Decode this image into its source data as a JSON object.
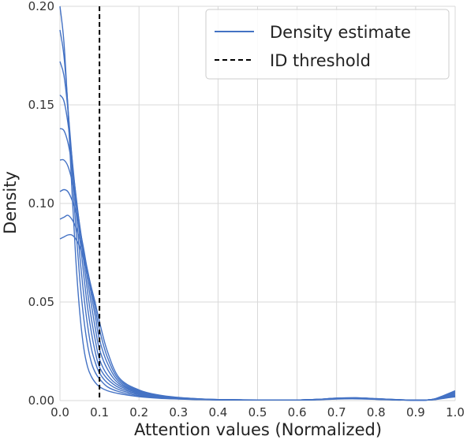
{
  "chart_data": {
    "type": "line",
    "title": "",
    "xlabel": "Attention values (Normalized)",
    "ylabel": "Density",
    "xlim": [
      0.0,
      1.0
    ],
    "ylim": [
      0.0,
      0.2
    ],
    "x_ticks": [
      "0.0",
      "0.1",
      "0.2",
      "0.3",
      "0.4",
      "0.5",
      "0.6",
      "0.7",
      "0.8",
      "0.9",
      "1.0"
    ],
    "y_ticks": [
      "0.00",
      "0.05",
      "0.10",
      "0.15",
      "0.20"
    ],
    "grid": true,
    "legend_position": "top-right",
    "legend": [
      {
        "label": "Density estimate",
        "style": "solid",
        "color": "#4472c4"
      },
      {
        "label": "ID threshold",
        "style": "dashed",
        "color": "#000000"
      }
    ],
    "threshold_x": 0.1,
    "series_color": "#4472c4",
    "x": [
      0.0,
      0.01,
      0.02,
      0.03,
      0.04,
      0.05,
      0.06,
      0.07,
      0.08,
      0.09,
      0.1,
      0.12,
      0.15,
      0.2,
      0.25,
      0.3,
      0.35,
      0.4,
      0.5,
      0.6,
      0.65,
      0.7,
      0.75,
      0.8,
      0.85,
      0.9,
      0.93,
      0.95,
      0.97,
      1.0
    ],
    "series": [
      {
        "values": [
          0.2,
          0.182,
          0.148,
          0.108,
          0.072,
          0.045,
          0.027,
          0.017,
          0.012,
          0.009,
          0.007,
          0.005,
          0.0035,
          0.002,
          0.0012,
          0.0008,
          0.0005,
          0.0004,
          0.0003,
          0.0003,
          0.0004,
          0.0008,
          0.0009,
          0.0006,
          0.0003,
          0.0002,
          0.0003,
          0.001,
          0.0025,
          0.005
        ]
      },
      {
        "values": [
          0.188,
          0.175,
          0.15,
          0.118,
          0.088,
          0.062,
          0.042,
          0.028,
          0.019,
          0.014,
          0.011,
          0.007,
          0.0045,
          0.0025,
          0.0014,
          0.0009,
          0.0006,
          0.0004,
          0.0003,
          0.0003,
          0.0005,
          0.0009,
          0.001,
          0.0007,
          0.0004,
          0.0002,
          0.0003,
          0.0009,
          0.0022,
          0.0045
        ]
      },
      {
        "values": [
          0.172,
          0.165,
          0.148,
          0.124,
          0.098,
          0.074,
          0.054,
          0.038,
          0.026,
          0.019,
          0.014,
          0.009,
          0.0055,
          0.003,
          0.0016,
          0.001,
          0.0006,
          0.0004,
          0.0003,
          0.0003,
          0.0005,
          0.001,
          0.0011,
          0.0007,
          0.0004,
          0.0002,
          0.0003,
          0.0008,
          0.002,
          0.004
        ]
      },
      {
        "values": [
          0.155,
          0.152,
          0.141,
          0.124,
          0.104,
          0.083,
          0.064,
          0.047,
          0.034,
          0.024,
          0.017,
          0.011,
          0.0065,
          0.0034,
          0.0018,
          0.0011,
          0.0007,
          0.0004,
          0.0003,
          0.0003,
          0.0005,
          0.001,
          0.0012,
          0.0008,
          0.0004,
          0.0002,
          0.0003,
          0.0008,
          0.0018,
          0.0035
        ]
      },
      {
        "values": [
          0.138,
          0.137,
          0.131,
          0.12,
          0.105,
          0.088,
          0.071,
          0.055,
          0.041,
          0.03,
          0.021,
          0.013,
          0.0075,
          0.0038,
          0.002,
          0.0012,
          0.0007,
          0.0004,
          0.0003,
          0.0003,
          0.0005,
          0.0011,
          0.0012,
          0.0008,
          0.0004,
          0.0002,
          0.0003,
          0.0007,
          0.0016,
          0.003
        ]
      },
      {
        "values": [
          0.122,
          0.122,
          0.119,
          0.112,
          0.102,
          0.089,
          0.075,
          0.061,
          0.048,
          0.036,
          0.026,
          0.016,
          0.0085,
          0.0042,
          0.0022,
          0.0013,
          0.0008,
          0.0005,
          0.0003,
          0.0003,
          0.0006,
          0.0011,
          0.0013,
          0.0009,
          0.0004,
          0.0002,
          0.0003,
          0.0007,
          0.0015,
          0.0027
        ]
      },
      {
        "values": [
          0.106,
          0.107,
          0.106,
          0.102,
          0.096,
          0.087,
          0.077,
          0.065,
          0.053,
          0.042,
          0.031,
          0.019,
          0.0095,
          0.0046,
          0.0024,
          0.0014,
          0.0008,
          0.0005,
          0.0003,
          0.0003,
          0.0006,
          0.0012,
          0.0013,
          0.0009,
          0.0005,
          0.0002,
          0.0003,
          0.0006,
          0.0013,
          0.0024
        ]
      },
      {
        "values": [
          0.092,
          0.093,
          0.094,
          0.092,
          0.088,
          0.082,
          0.075,
          0.066,
          0.056,
          0.046,
          0.036,
          0.022,
          0.0105,
          0.005,
          0.0026,
          0.0015,
          0.0009,
          0.0005,
          0.0003,
          0.0003,
          0.0006,
          0.0012,
          0.0014,
          0.0009,
          0.0005,
          0.0002,
          0.0003,
          0.0006,
          0.0012,
          0.0021
        ]
      },
      {
        "values": [
          0.082,
          0.083,
          0.084,
          0.084,
          0.082,
          0.078,
          0.072,
          0.065,
          0.057,
          0.049,
          0.04,
          0.025,
          0.0115,
          0.0054,
          0.0028,
          0.0016,
          0.0009,
          0.0005,
          0.0003,
          0.0003,
          0.0006,
          0.0012,
          0.0014,
          0.001,
          0.0005,
          0.0002,
          0.0003,
          0.0005,
          0.0011,
          0.0019
        ]
      }
    ]
  }
}
